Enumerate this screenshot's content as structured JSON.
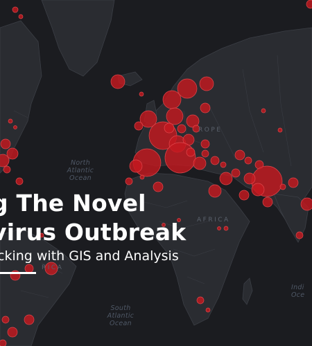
{
  "title": {
    "line1": "g The Novel",
    "line2": "virus Outbreak",
    "subtitle": "cking with GIS and Analysis"
  },
  "map_labels": {
    "north_atlantic": [
      "North",
      "Atlantic",
      "Ocean"
    ],
    "south_atlantic": [
      "South",
      "Atlantic",
      "Ocean"
    ],
    "europe": "ROPE",
    "africa": "AFRICA",
    "indian": [
      "Indi",
      "Oce"
    ],
    "s_america": "RICA"
  },
  "colors": {
    "background": "#1b1c20",
    "land": "#2a2c31",
    "border": "#3c3f46",
    "bubble_fill": "#c41920",
    "bubble_stroke": "#e0474c",
    "title_text": "#ffffff"
  }
}
